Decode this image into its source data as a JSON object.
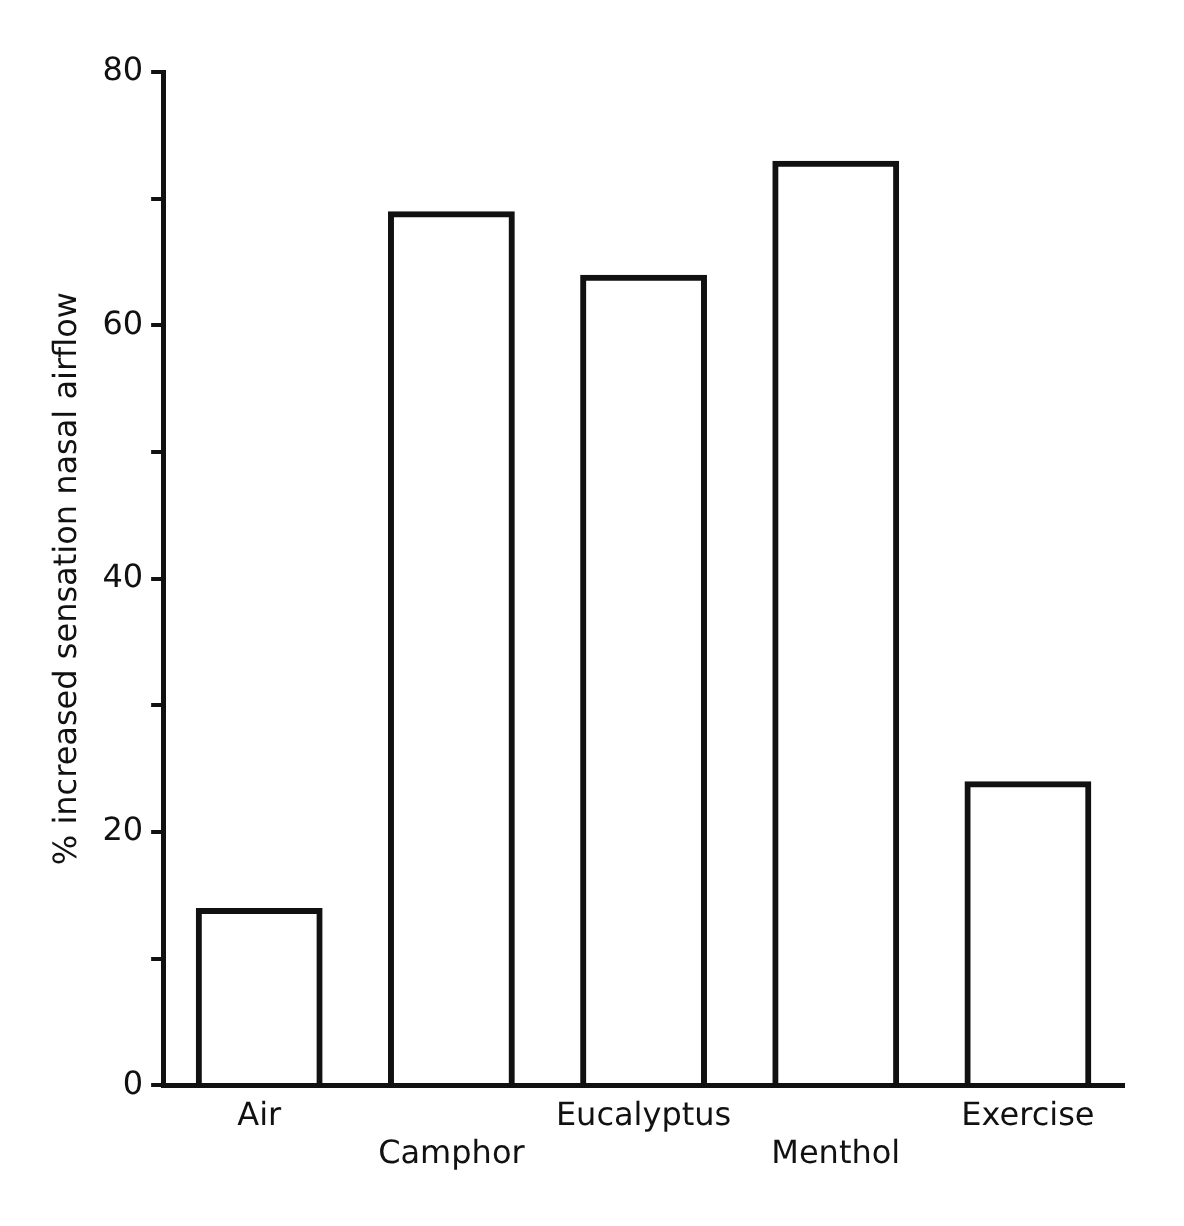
{
  "chart_data": {
    "type": "bar",
    "ylabel": "% increased sensation nasal airflow",
    "categories": [
      "Air",
      "Camphor",
      "Eucalyptus",
      "Menthol",
      "Exercise"
    ],
    "values": [
      14,
      69,
      64,
      73,
      24
    ],
    "color": "#111111",
    "ylim": [
      0,
      80
    ],
    "yticks": [
      0,
      {
        "value": 10,
        "label": null
      },
      20,
      {
        "value": 30,
        "label": null
      },
      40,
      {
        "value": 50,
        "label": null
      },
      60,
      {
        "value": 70,
        "label": null
      },
      80
    ],
    "grid": false,
    "legend": false
  }
}
